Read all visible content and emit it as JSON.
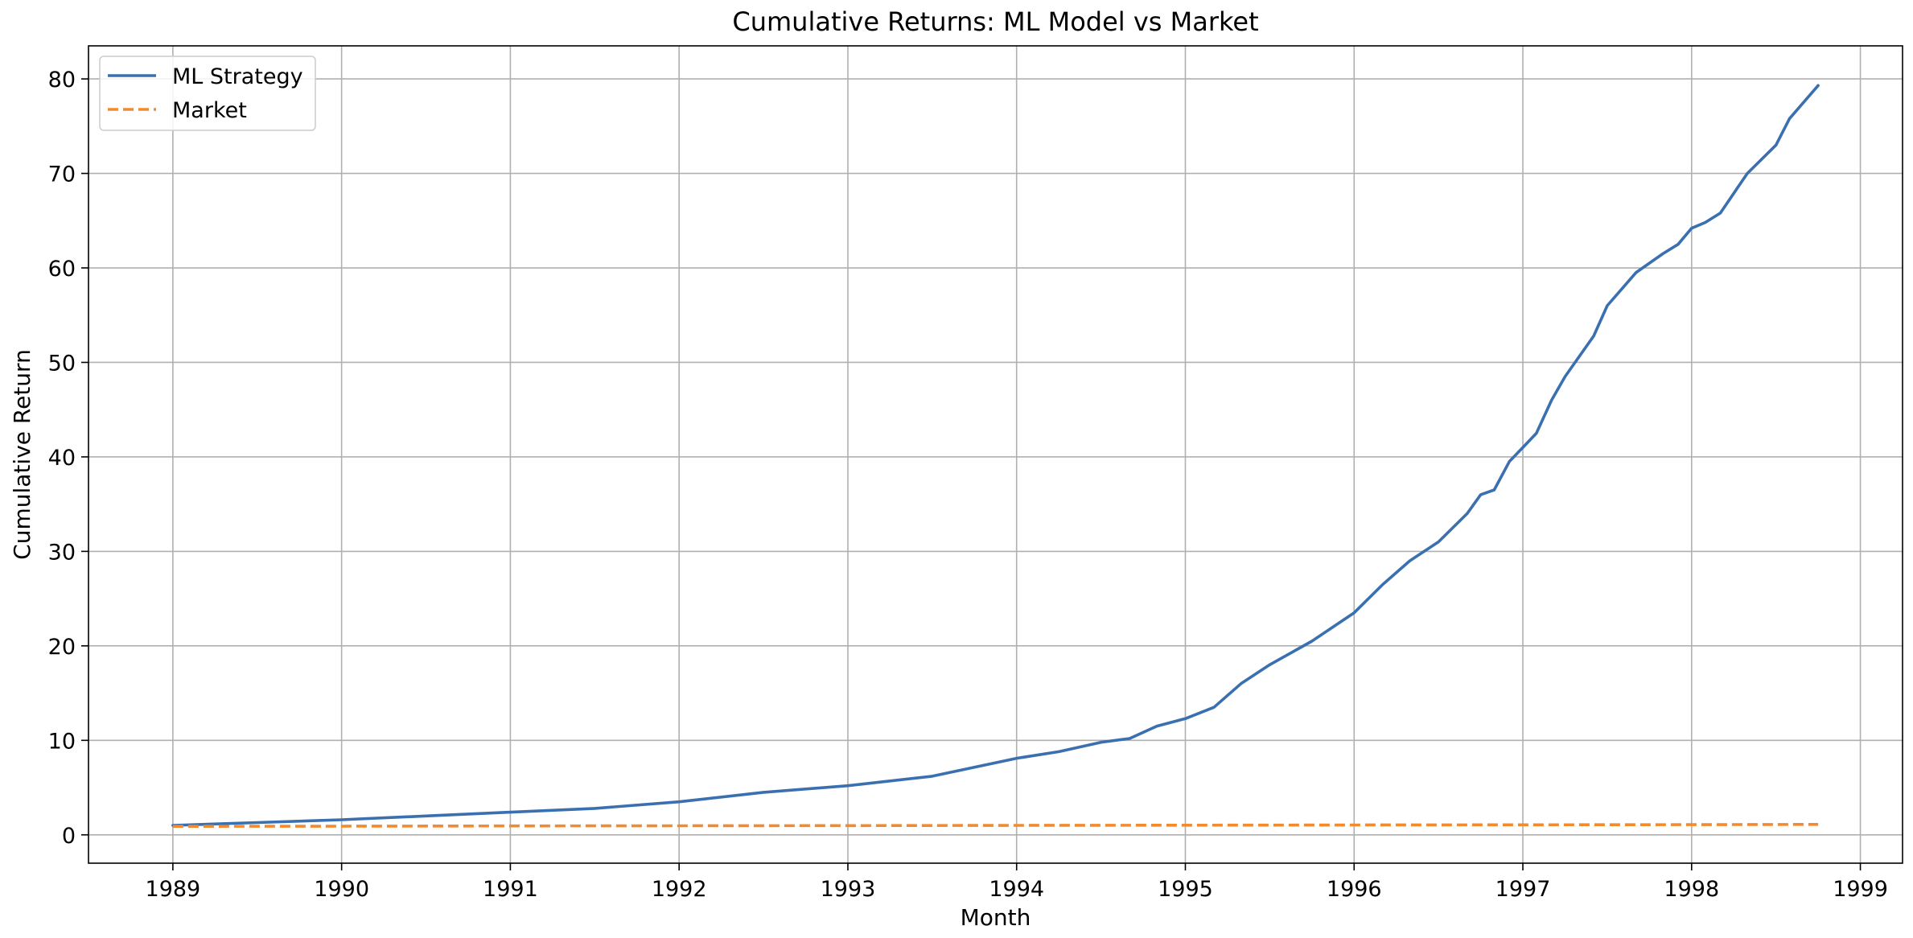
{
  "chart_data": {
    "type": "line",
    "title": "Cumulative Returns: ML Model vs Market",
    "xlabel": "Month",
    "ylabel": "Cumulative Return",
    "xlim": [
      1988.5,
      1999.25
    ],
    "ylim": [
      -3,
      83.5
    ],
    "xticks": [
      1989,
      1990,
      1991,
      1992,
      1993,
      1994,
      1995,
      1996,
      1997,
      1998,
      1999
    ],
    "yticks": [
      0,
      10,
      20,
      30,
      40,
      50,
      60,
      70,
      80
    ],
    "grid": true,
    "legend_position": "top-left",
    "series": [
      {
        "name": "ML Strategy",
        "color": "#3a6fb0",
        "style": "solid",
        "x": [
          1989.0,
          1989.5,
          1990.0,
          1990.5,
          1991.0,
          1991.5,
          1992.0,
          1992.5,
          1993.0,
          1993.5,
          1994.0,
          1994.25,
          1994.5,
          1994.67,
          1994.83,
          1995.0,
          1995.17,
          1995.33,
          1995.5,
          1995.75,
          1996.0,
          1996.17,
          1996.33,
          1996.5,
          1996.67,
          1996.75,
          1996.83,
          1996.92,
          1997.0,
          1997.08,
          1997.17,
          1997.25,
          1997.42,
          1997.5,
          1997.67,
          1997.83,
          1997.92,
          1998.0,
          1998.08,
          1998.17,
          1998.33,
          1998.5,
          1998.58,
          1998.75
        ],
        "values": [
          1.0,
          1.3,
          1.6,
          2.0,
          2.4,
          2.8,
          3.5,
          4.5,
          5.2,
          6.2,
          8.1,
          8.8,
          9.8,
          10.2,
          11.5,
          12.3,
          13.5,
          16.0,
          18.0,
          20.5,
          23.5,
          26.5,
          29.0,
          31.0,
          34.0,
          36.0,
          36.5,
          39.5,
          41.0,
          42.5,
          46.0,
          48.5,
          52.8,
          56.0,
          59.5,
          61.5,
          62.5,
          64.2,
          64.8,
          65.8,
          70.0,
          73.0,
          75.8,
          79.3
        ]
      },
      {
        "name": "Market",
        "color": "#f28b30",
        "style": "dashed",
        "x": [
          1989.0,
          1990.0,
          1991.0,
          1992.0,
          1993.0,
          1994.0,
          1995.0,
          1996.0,
          1997.0,
          1998.0,
          1998.75
        ],
        "values": [
          0.9,
          0.92,
          0.94,
          0.96,
          0.98,
          1.0,
          1.02,
          1.04,
          1.06,
          1.08,
          1.1
        ]
      }
    ]
  }
}
